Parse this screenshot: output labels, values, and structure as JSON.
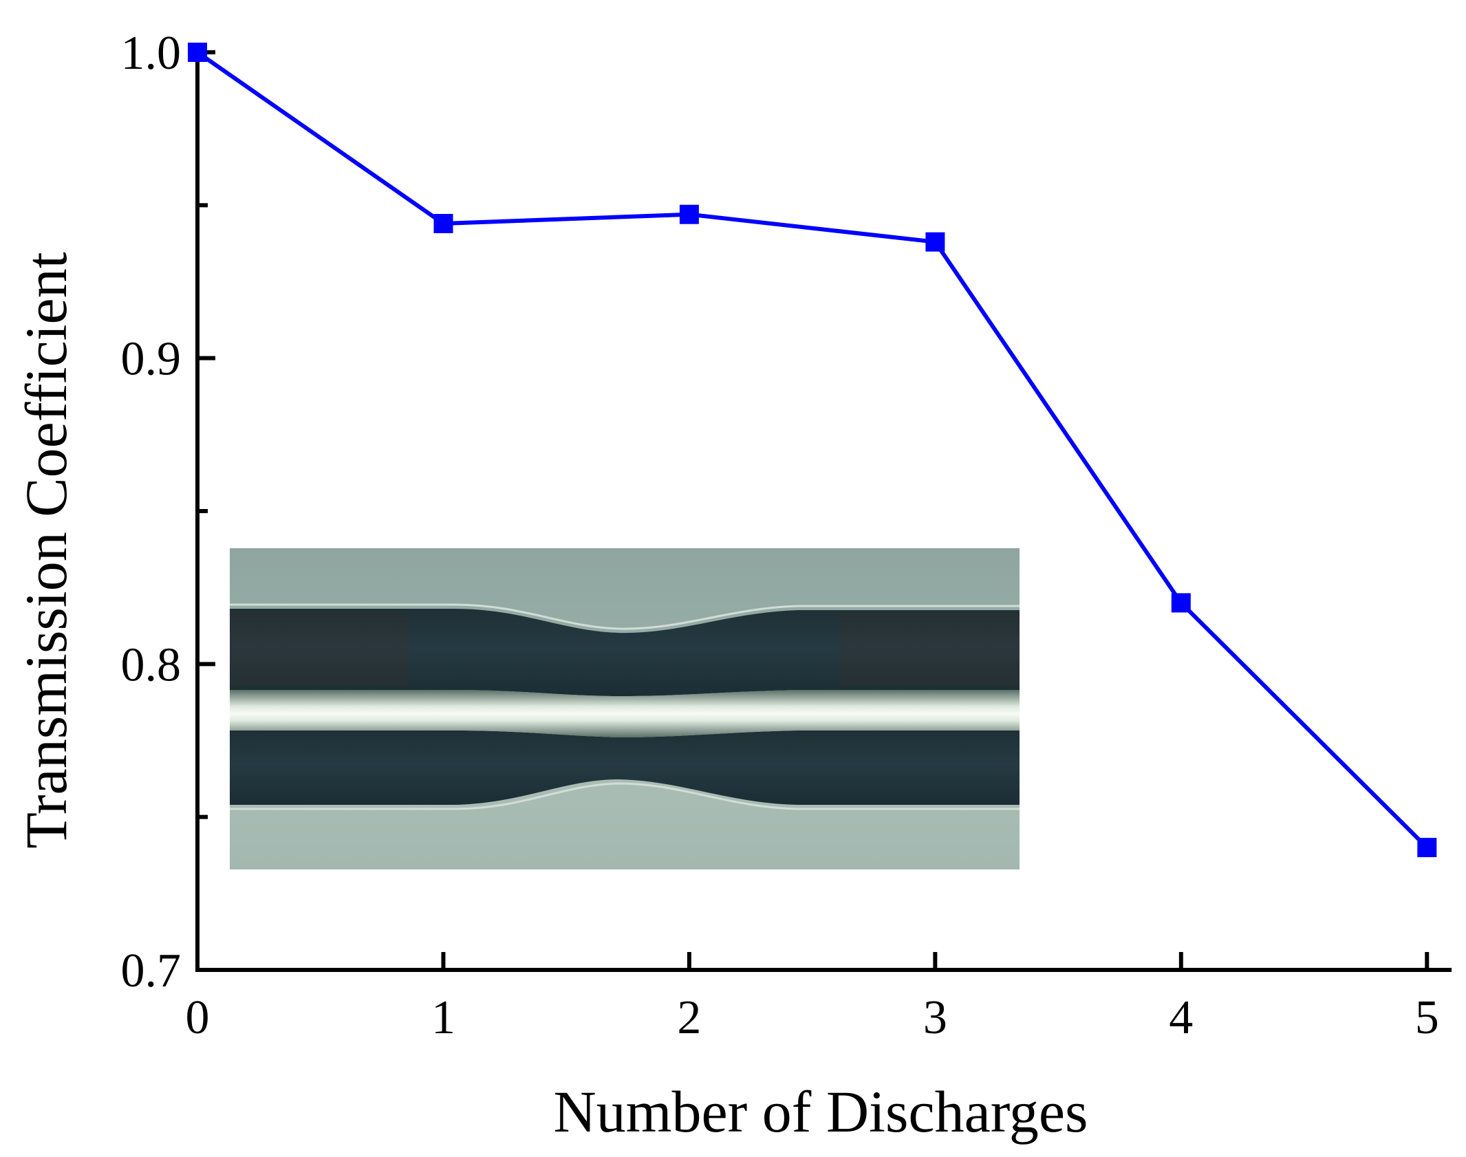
{
  "chart_data": {
    "type": "line",
    "title": "",
    "xlabel": "Number of Discharges",
    "ylabel": "Transmission Coefficient",
    "x": [
      0,
      1,
      2,
      3,
      4,
      5
    ],
    "series": [
      {
        "values": [
          1.0,
          0.944,
          0.947,
          0.938,
          0.82,
          0.74
        ]
      }
    ],
    "xlim": [
      0,
      5.1
    ],
    "ylim": [
      0.7,
      1.0
    ],
    "xticks": [
      "0",
      "1",
      "2",
      "3",
      "4",
      "5"
    ],
    "yticks": [
      "0.7",
      "0.8",
      "0.9",
      "1.0"
    ],
    "yminor_ticks": [
      0.75,
      0.85,
      0.95
    ],
    "grid": false,
    "series_color": "#0000ff",
    "marker": "square",
    "inset": "microscope-image-of-tapered-fiber"
  }
}
